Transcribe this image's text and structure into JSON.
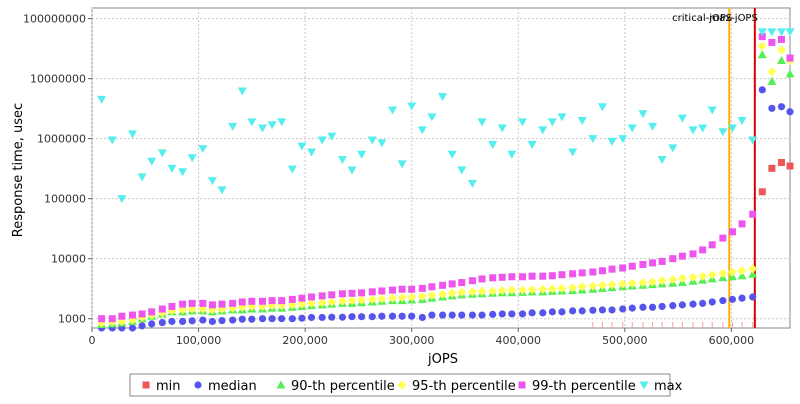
{
  "chart_data": {
    "type": "scatter",
    "title": "",
    "xlabel": "jOPS",
    "ylabel": "Response time, usec",
    "x_scale": "linear",
    "y_scale": "log",
    "xlim": [
      0,
      655000
    ],
    "ylim": [
      700,
      150000000
    ],
    "x_ticks": [
      0,
      100000,
      200000,
      300000,
      400000,
      500000,
      600000
    ],
    "x_tick_labels": [
      "0",
      "100,000",
      "200,000",
      "300,000",
      "400,000",
      "500,000",
      "600,000"
    ],
    "y_ticks": [
      1000,
      10000,
      100000,
      1000000,
      10000000,
      100000000
    ],
    "y_tick_labels": [
      "1000",
      "10000",
      "100000",
      "1000000",
      "10000000",
      "100000000"
    ],
    "grid": true,
    "legend_position": "bottom",
    "vertical_markers": [
      {
        "label": "critical-jOPS",
        "x": 598000,
        "color": "#ffb000"
      },
      {
        "label": "max-jOPS",
        "x": 622000,
        "color": "#dd0000"
      }
    ],
    "x": [
      9000,
      19000,
      28000,
      38000,
      47000,
      56000,
      66000,
      75000,
      85000,
      94000,
      104000,
      113000,
      122000,
      132000,
      141000,
      150000,
      160000,
      169000,
      178000,
      188000,
      197000,
      206000,
      216000,
      225000,
      235000,
      244000,
      253000,
      263000,
      272000,
      282000,
      291000,
      300000,
      310000,
      319000,
      329000,
      338000,
      347000,
      357000,
      366000,
      376000,
      385000,
      394000,
      404000,
      413000,
      423000,
      432000,
      441000,
      451000,
      460000,
      470000,
      479000,
      488000,
      498000,
      507000,
      517000,
      526000,
      535000,
      545000,
      554000,
      564000,
      573000,
      582000,
      592000,
      601000,
      610000,
      620000,
      629000,
      638000,
      647000,
      655000
    ],
    "series": [
      {
        "name": "min",
        "color": "#ee5555",
        "marker": "square",
        "values": [
          null,
          null,
          null,
          null,
          null,
          null,
          null,
          null,
          null,
          null,
          null,
          null,
          null,
          null,
          null,
          null,
          null,
          null,
          null,
          null,
          null,
          null,
          null,
          null,
          null,
          null,
          null,
          null,
          null,
          null,
          null,
          null,
          null,
          null,
          null,
          null,
          null,
          null,
          null,
          null,
          null,
          null,
          null,
          null,
          null,
          null,
          null,
          null,
          null,
          null,
          null,
          null,
          null,
          null,
          null,
          null,
          null,
          null,
          null,
          null,
          null,
          null,
          null,
          null,
          null,
          null,
          130000,
          320000,
          400000,
          350000
        ]
      },
      {
        "name": "median",
        "color": "#5555ee",
        "marker": "circle",
        "values": [
          650,
          660,
          670,
          700,
          760,
          820,
          860,
          900,
          900,
          920,
          950,
          900,
          930,
          950,
          980,
          980,
          1000,
          1000,
          1000,
          1000,
          1020,
          1050,
          1050,
          1060,
          1060,
          1080,
          1080,
          1080,
          1100,
          1100,
          1100,
          1100,
          1050,
          1150,
          1150,
          1150,
          1150,
          1150,
          1150,
          1180,
          1200,
          1200,
          1200,
          1250,
          1250,
          1300,
          1300,
          1350,
          1350,
          1380,
          1400,
          1400,
          1450,
          1500,
          1550,
          1550,
          1600,
          1650,
          1700,
          1750,
          1800,
          1900,
          2000,
          2100,
          2200,
          2300,
          6500000,
          3200000,
          3400000,
          2800000
        ]
      },
      {
        "name": "90-th percentile",
        "color": "#55ee55",
        "marker": "triangle-up",
        "values": [
          800,
          820,
          850,
          900,
          1000,
          1100,
          1200,
          1300,
          1300,
          1350,
          1350,
          1300,
          1350,
          1400,
          1400,
          1450,
          1450,
          1500,
          1500,
          1550,
          1600,
          1650,
          1700,
          1750,
          1800,
          1800,
          1850,
          1900,
          1950,
          2000,
          2000,
          2050,
          2100,
          2200,
          2300,
          2400,
          2500,
          2550,
          2600,
          2650,
          2700,
          2700,
          2750,
          2800,
          2800,
          2850,
          2900,
          2950,
          3000,
          3100,
          3200,
          3300,
          3400,
          3500,
          3600,
          3700,
          3800,
          3900,
          4000,
          4200,
          4400,
          4600,
          4800,
          5000,
          5200,
          5500,
          25000000,
          9000000,
          20000000,
          12000000
        ]
      },
      {
        "name": "95-th percentile",
        "color": "#ffff55",
        "marker": "diamond",
        "values": [
          850,
          880,
          900,
          950,
          1050,
          1150,
          1250,
          1350,
          1400,
          1450,
          1450,
          1400,
          1450,
          1500,
          1550,
          1600,
          1600,
          1650,
          1650,
          1700,
          1750,
          1800,
          1850,
          1900,
          1950,
          2000,
          2050,
          2100,
          2150,
          2200,
          2250,
          2300,
          2350,
          2450,
          2550,
          2650,
          2750,
          2800,
          2850,
          2900,
          2950,
          3000,
          3000,
          3050,
          3100,
          3150,
          3200,
          3300,
          3400,
          3500,
          3600,
          3700,
          3800,
          3900,
          4000,
          4100,
          4300,
          4500,
          4700,
          4900,
          5100,
          5400,
          5700,
          6000,
          6300,
          6800,
          35000000,
          13000000,
          30000000,
          20000000
        ]
      },
      {
        "name": "99-th percentile",
        "color": "#ee55ee",
        "marker": "square",
        "values": [
          1000,
          1000,
          1100,
          1150,
          1200,
          1300,
          1450,
          1600,
          1750,
          1800,
          1800,
          1700,
          1750,
          1800,
          1900,
          1950,
          1950,
          2000,
          2000,
          2100,
          2200,
          2300,
          2400,
          2500,
          2600,
          2650,
          2700,
          2800,
          2900,
          3000,
          3100,
          3100,
          3200,
          3400,
          3600,
          3800,
          4000,
          4300,
          4600,
          4800,
          4900,
          5000,
          5000,
          5100,
          5100,
          5200,
          5400,
          5600,
          5800,
          6000,
          6300,
          6700,
          7000,
          7500,
          8000,
          8500,
          9000,
          10000,
          11000,
          12000,
          14000,
          17000,
          22000,
          28000,
          38000,
          55000,
          50000000,
          40000000,
          45000000,
          22000000
        ]
      },
      {
        "name": "max",
        "color": "#55eeee",
        "marker": "triangle-down",
        "values": [
          4500000,
          950000,
          100000,
          1200000,
          230000,
          420000,
          580000,
          320000,
          280000,
          480000,
          680000,
          200000,
          140000,
          1600000,
          6200000,
          1900000,
          1500000,
          1700000,
          1900000,
          310000,
          750000,
          600000,
          950000,
          1100000,
          450000,
          300000,
          550000,
          950000,
          850000,
          3000000,
          380000,
          3500000,
          1400000,
          2300000,
          5000000,
          550000,
          300000,
          180000,
          1900000,
          800000,
          1500000,
          550000,
          1900000,
          800000,
          1400000,
          1900000,
          2300000,
          600000,
          2000000,
          1000000,
          3400000,
          900000,
          1000000,
          1500000,
          2600000,
          1600000,
          450000,
          700000,
          2200000,
          1400000,
          1500000,
          3000000,
          1300000,
          1500000,
          2000000,
          950000,
          60000000,
          60000000,
          60000000,
          60000000
        ]
      }
    ]
  }
}
